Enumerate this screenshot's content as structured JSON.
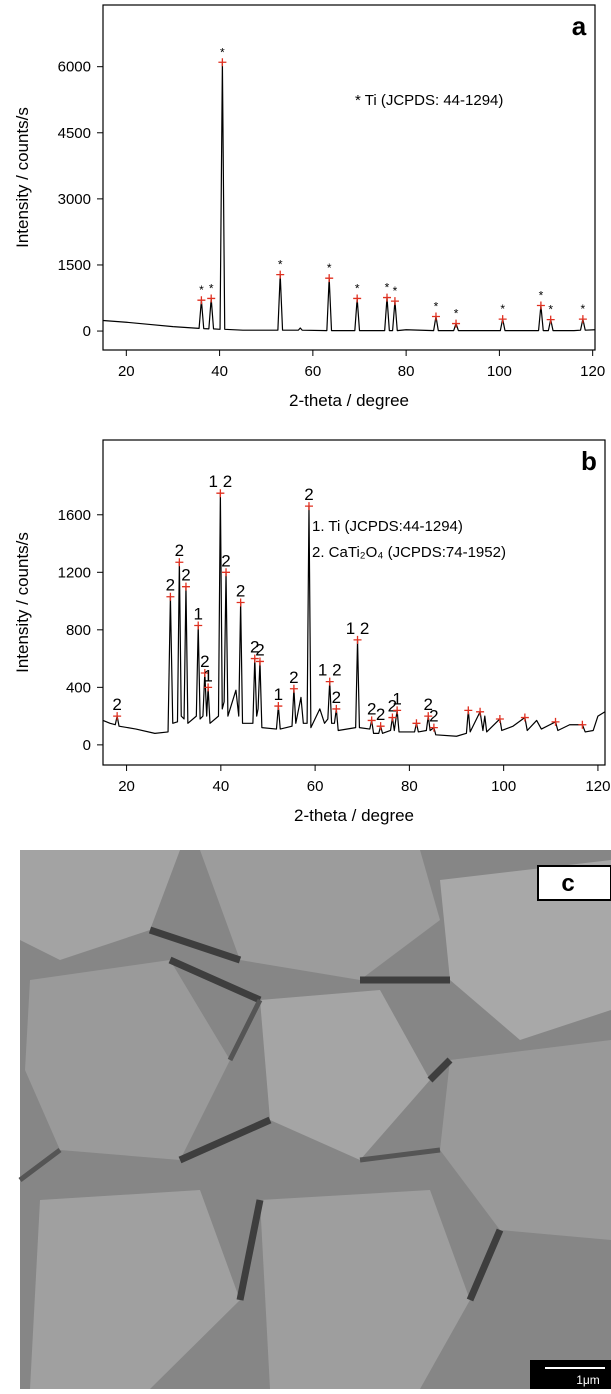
{
  "chart_data": [
    {
      "type": "line",
      "panel_label": "a",
      "x_label": "2-theta / degree",
      "y_label": "Intensity / counts/s",
      "annotations": [
        "* Ti (JCPDS: 44-1294)"
      ],
      "xlim": [
        15,
        120.5
      ],
      "xticks": [
        20,
        40,
        60,
        80,
        100,
        120
      ],
      "ylim": [
        -430,
        7400
      ],
      "yticks": [
        0,
        1500,
        3000,
        4500,
        6000
      ],
      "series": [
        {
          "color": "#000000",
          "x": [
            15,
            20,
            25,
            30,
            35.6,
            36.1,
            36.6,
            37.7,
            38.2,
            38.7,
            40.1,
            40.6,
            41.1,
            45,
            52.5,
            53,
            53.5,
            56.9,
            57.3,
            57.7,
            63,
            63.5,
            64,
            69,
            69.5,
            70,
            75.4,
            75.9,
            76.4,
            77.1,
            77.6,
            78.1,
            80,
            85.9,
            86.4,
            86.9,
            90.2,
            90.7,
            91.2,
            100.2,
            100.7,
            101.2,
            105,
            108.4,
            108.9,
            109.4,
            110.5,
            111,
            111.5,
            116,
            117.4,
            117.9,
            118.4,
            120.5
          ],
          "values": [
            240,
            200,
            150,
            100,
            60,
            700,
            55,
            50,
            740,
            50,
            40,
            6100,
            40,
            20,
            20,
            1280,
            20,
            20,
            70,
            20,
            10,
            1200,
            10,
            10,
            740,
            10,
            10,
            760,
            10,
            10,
            680,
            10,
            30,
            10,
            330,
            10,
            10,
            170,
            10,
            10,
            270,
            10,
            10,
            10,
            580,
            10,
            10,
            260,
            10,
            10,
            20,
            270,
            20,
            30
          ]
        }
      ],
      "markers": {
        "color": "#e03020",
        "x": [
          36.1,
          38.2,
          40.6,
          53,
          63.5,
          69.5,
          75.9,
          77.6,
          86.4,
          90.7,
          100.7,
          108.9,
          111,
          117.9
        ],
        "values": [
          700,
          740,
          6100,
          1280,
          1200,
          740,
          760,
          680,
          330,
          170,
          270,
          580,
          260,
          270
        ],
        "labels": [
          "*",
          "*",
          "*",
          "*",
          "*",
          "*",
          "*",
          "*",
          "*",
          "*",
          "*",
          "*",
          "*",
          "*"
        ]
      }
    },
    {
      "type": "line",
      "panel_label": "b",
      "x_label": "2-theta / degree",
      "y_label": "Intensity / counts/s",
      "annotations": [
        "1. Ti (JCPDS:44-1294)",
        "2. CaTi₂O₄ (JCPDS:74-1952)"
      ],
      "xlim": [
        15,
        121.5
      ],
      "xticks": [
        20,
        40,
        60,
        80,
        100,
        120
      ],
      "ylim": [
        -140,
        2120
      ],
      "yticks": [
        0,
        400,
        800,
        1200,
        1600
      ],
      "series": [
        {
          "color": "#000000",
          "x": [
            15,
            16.5,
            17.6,
            18,
            18.4,
            22,
            26,
            28.8,
            29.3,
            29.8,
            30.8,
            31.2,
            31.6,
            32.2,
            32.6,
            33,
            34.8,
            35.2,
            35.6,
            36.2,
            36.6,
            37,
            37.3,
            37.7,
            39.5,
            39.9,
            40.3,
            40.7,
            41.1,
            41.5,
            43.2,
            43.8,
            44.2,
            44.6,
            46.8,
            47.2,
            47.6,
            47.9,
            48.3,
            48.7,
            51.8,
            52.2,
            52.6,
            55.1,
            55.5,
            55.9,
            57,
            57.5,
            58.3,
            58.7,
            59.1,
            61,
            62,
            62.7,
            63.1,
            63.5,
            64.1,
            64.5,
            64.9,
            68.6,
            69,
            69.4,
            71.6,
            72,
            72.4,
            73.5,
            73.9,
            74.3,
            76,
            76.4,
            76.8,
            77.4,
            77.8,
            81.1,
            81.5,
            81.9,
            83.6,
            84,
            84.4,
            85.2,
            85.6,
            90,
            92.1,
            92.5,
            92.9,
            95,
            95.6,
            96,
            96.4,
            99.2,
            99.6,
            102,
            104.5,
            105,
            107,
            108,
            111,
            111.5,
            114,
            116.7,
            117.3,
            119,
            120,
            121.5
          ],
          "values": [
            170,
            150,
            140,
            200,
            130,
            110,
            80,
            90,
            1030,
            150,
            160,
            1270,
            200,
            180,
            1100,
            150,
            200,
            830,
            180,
            200,
            500,
            200,
            400,
            150,
            200,
            1750,
            250,
            300,
            1200,
            200,
            380,
            200,
            990,
            150,
            150,
            600,
            200,
            250,
            580,
            120,
            110,
            270,
            110,
            130,
            390,
            150,
            330,
            150,
            150,
            1660,
            120,
            250,
            150,
            180,
            440,
            150,
            150,
            250,
            100,
            120,
            730,
            120,
            110,
            170,
            80,
            80,
            130,
            80,
            100,
            190,
            100,
            240,
            90,
            90,
            150,
            90,
            100,
            200,
            100,
            120,
            70,
            60,
            80,
            240,
            90,
            230,
            100,
            200,
            90,
            180,
            100,
            130,
            190,
            100,
            170,
            110,
            160,
            100,
            140,
            140,
            90,
            100,
            200,
            230
          ]
        }
      ],
      "markers": {
        "color": "#e03020",
        "x": [
          18,
          29.3,
          31.2,
          32.6,
          35.2,
          36.6,
          37.3,
          39.9,
          41.1,
          44.2,
          47.2,
          48.3,
          52.2,
          55.5,
          58.7,
          63.1,
          64.5,
          69,
          72,
          73.9,
          76.4,
          77.4,
          81.5,
          84,
          85.2,
          92.5,
          95,
          99.2,
          104.5,
          111,
          116.7
        ],
        "values": [
          200,
          1030,
          1270,
          1100,
          830,
          500,
          400,
          1750,
          1200,
          990,
          600,
          580,
          270,
          390,
          1660,
          440,
          250,
          730,
          170,
          130,
          190,
          240,
          150,
          200,
          120,
          240,
          230,
          180,
          190,
          160,
          140
        ],
        "labels": [
          "2",
          "2",
          "2",
          "2",
          "1",
          "2",
          "1",
          "1 2",
          "2",
          "2",
          "2",
          "2",
          "1",
          "2",
          "2",
          "1 2",
          "2",
          "1 2",
          "2",
          "2",
          "2",
          "1",
          null,
          "2",
          "2",
          null,
          null,
          null,
          null,
          null,
          null
        ]
      }
    }
  ],
  "image_panel": {
    "label": "c",
    "scale_bar": "1μm"
  }
}
